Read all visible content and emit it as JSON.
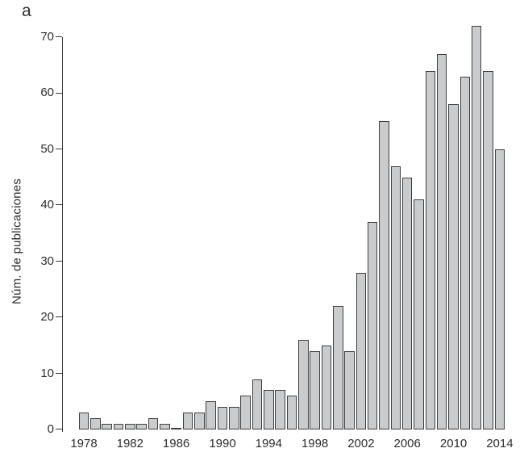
{
  "figure": {
    "panel_label": "a",
    "background": "#ffffff"
  },
  "chart_data": {
    "type": "bar",
    "title": "",
    "xlabel": "",
    "ylabel": "Núm. de publicaciones",
    "x": [
      1978,
      1979,
      1980,
      1981,
      1982,
      1983,
      1984,
      1985,
      1986,
      1987,
      1988,
      1989,
      1990,
      1991,
      1992,
      1993,
      1994,
      1995,
      1996,
      1997,
      1998,
      1999,
      2000,
      2001,
      2002,
      2003,
      2004,
      2005,
      2006,
      2007,
      2008,
      2009,
      2010,
      2011,
      2012,
      2013,
      2014
    ],
    "values": [
      3,
      2,
      1,
      1,
      1,
      1,
      2,
      1,
      0,
      3,
      3,
      5,
      4,
      4,
      6,
      9,
      7,
      7,
      6,
      16,
      14,
      15,
      22,
      14,
      28,
      37,
      55,
      47,
      45,
      41,
      64,
      67,
      58,
      63,
      72,
      64,
      50
    ],
    "ylim": [
      0,
      70
    ],
    "yticks": [
      0,
      10,
      20,
      30,
      40,
      50,
      60,
      70
    ],
    "xtick_labels": [
      "1978",
      "1982",
      "1986",
      "1990",
      "1994",
      "1998",
      "2002",
      "2006",
      "2010",
      "2014"
    ],
    "grid": false,
    "legend": null,
    "bar_fill": "#c9cbcd",
    "bar_border": "#3f3f3f",
    "axis_color": "#3a3a3a",
    "text_color": "#2e2e2e"
  }
}
